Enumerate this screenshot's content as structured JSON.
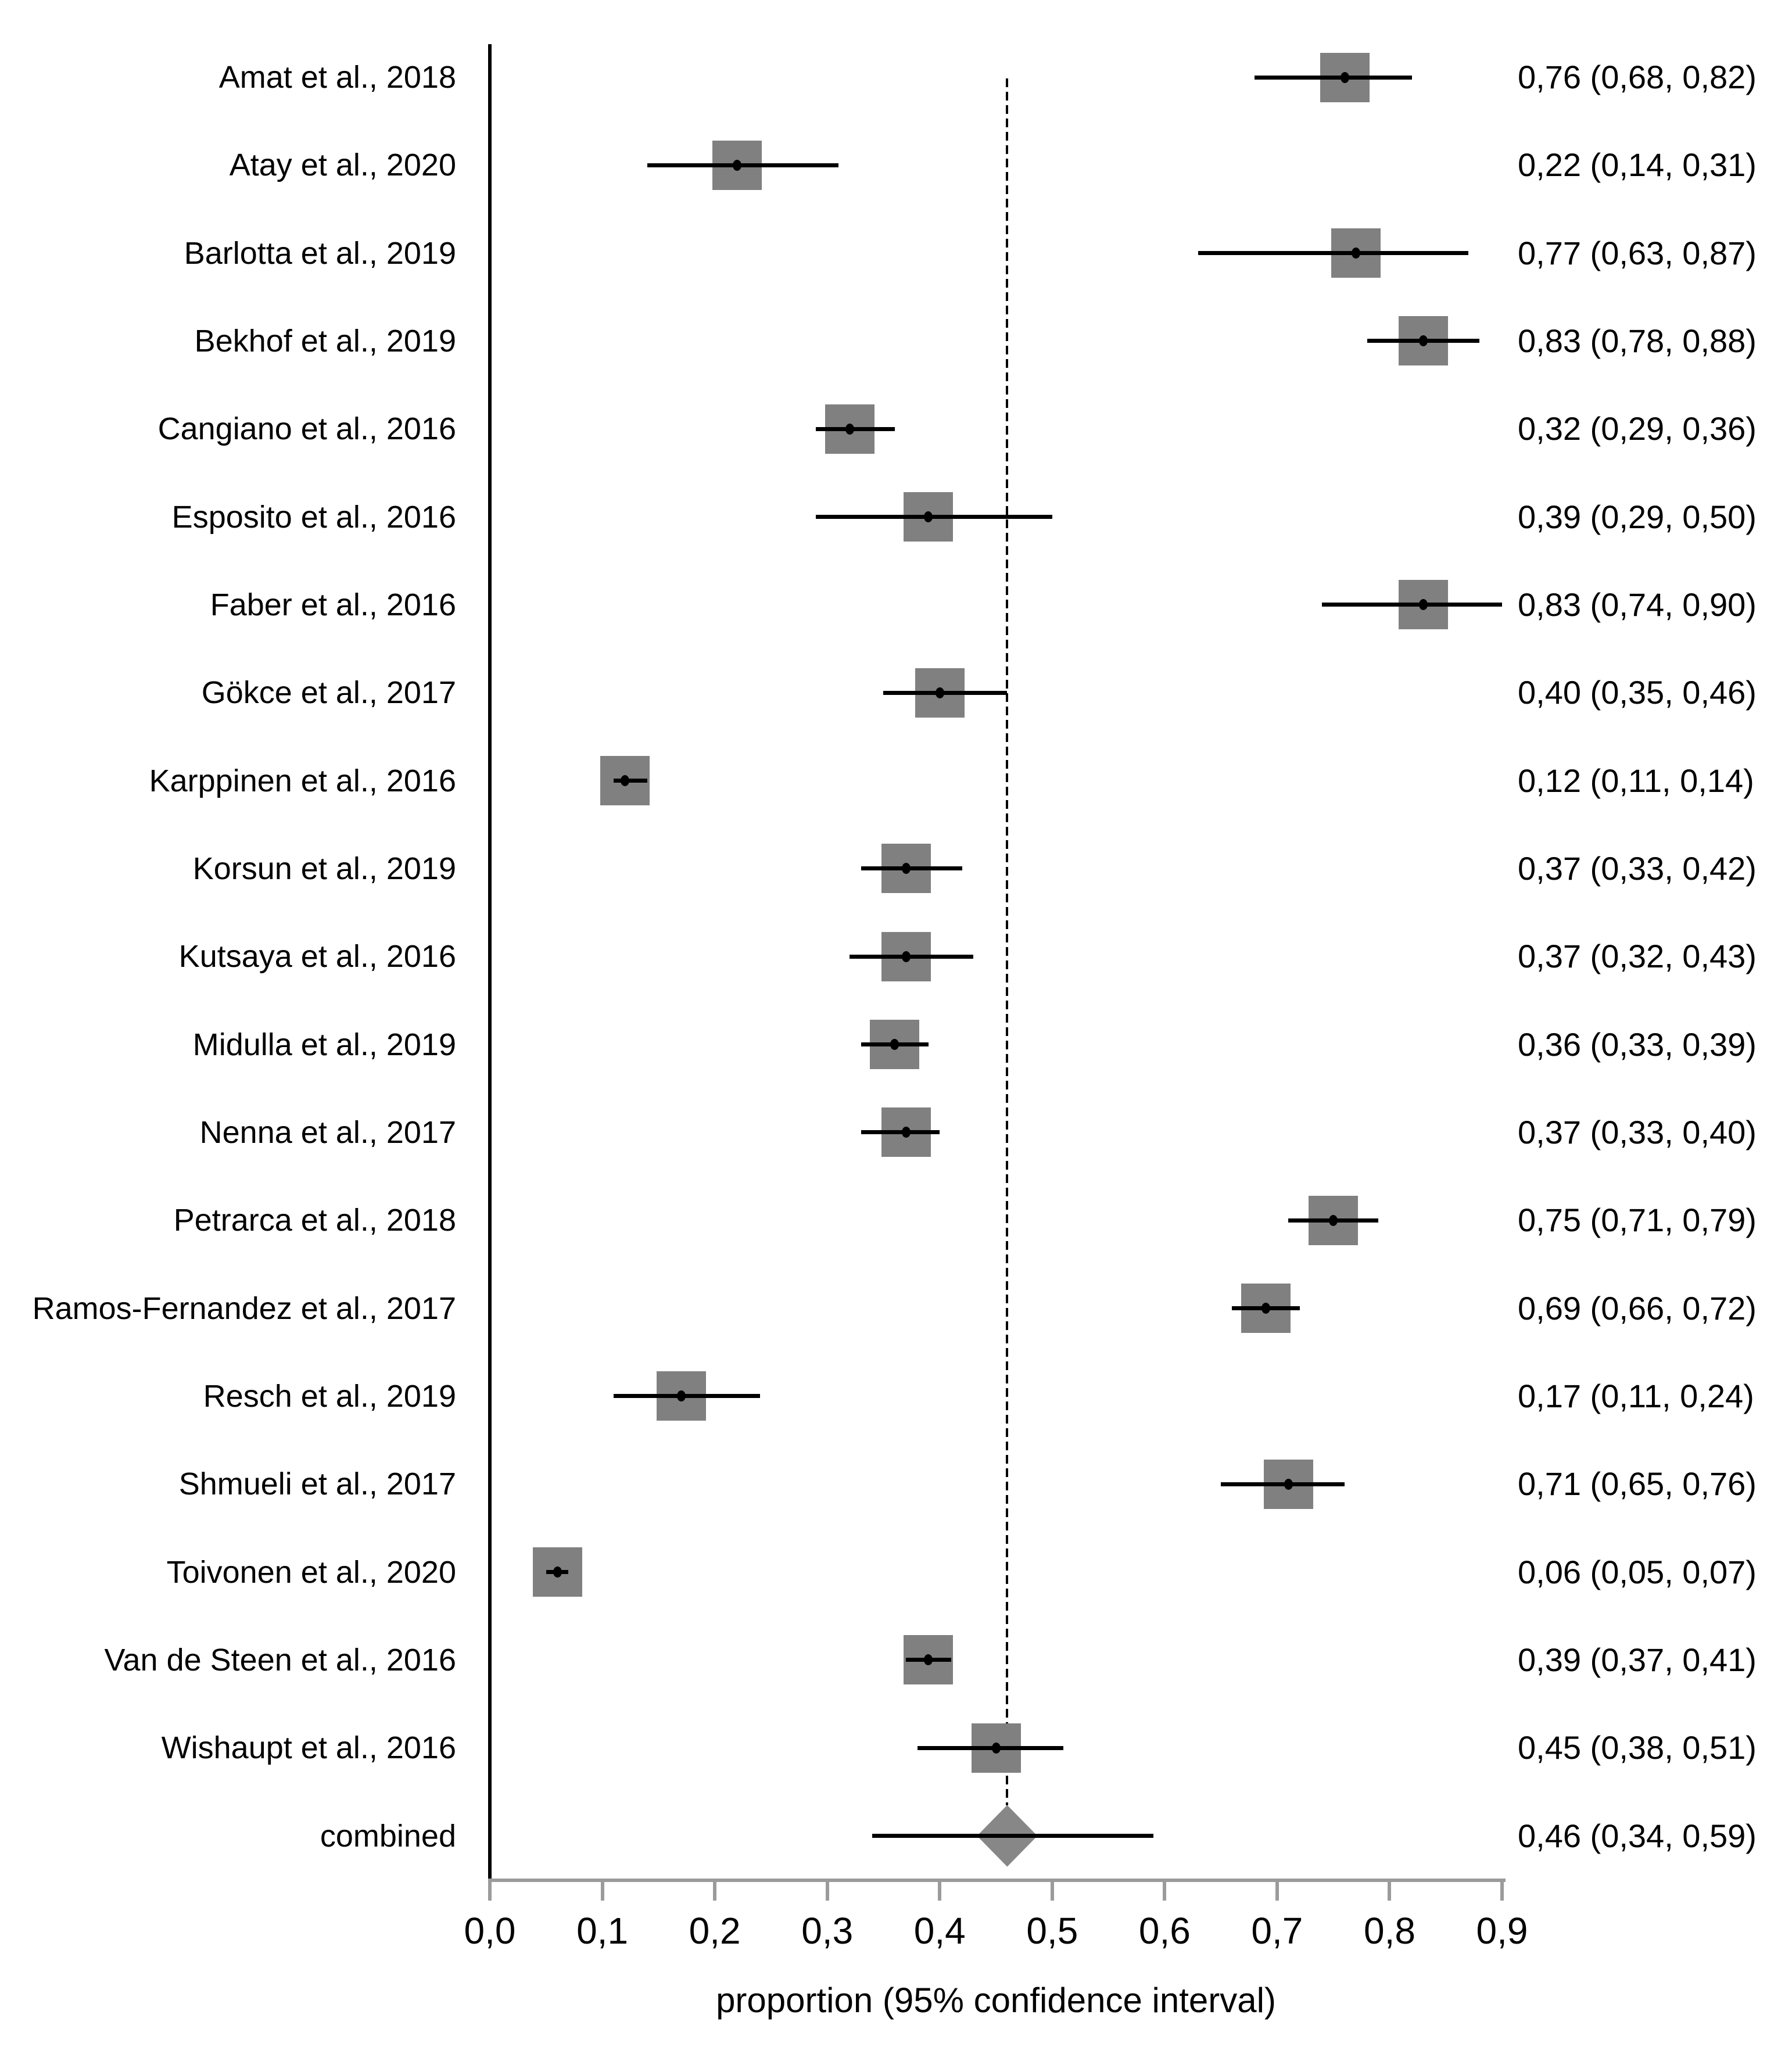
{
  "figure": {
    "xlabel": "proportion (95% confidence interval)"
  },
  "chart_data": {
    "type": "forest",
    "title": "",
    "xlabel": "proportion (95% confidence interval)",
    "xlim": [
      0.0,
      0.9
    ],
    "x_ticks": [
      0.0,
      0.1,
      0.2,
      0.3,
      0.4,
      0.5,
      0.6,
      0.7,
      0.8,
      0.9
    ],
    "x_tick_labels": [
      "0,0",
      "0,1",
      "0,2",
      "0,3",
      "0,4",
      "0,5",
      "0,6",
      "0,7",
      "0,8",
      "0,9"
    ],
    "reference_line": 0.46,
    "legend_position": "none",
    "grid": false,
    "colors": {
      "marker_gray": "#808080",
      "diamond_gray": "#878787",
      "axis_gray": "#9b9b9b",
      "ci_line": "#000000",
      "text": "#000000"
    },
    "studies": [
      {
        "label": "Amat et al., 2018",
        "estimate": 0.76,
        "ci_low": 0.68,
        "ci_high": 0.82,
        "value_text": "0,76 (0,68, 0,82)",
        "marker": "square"
      },
      {
        "label": "Atay et al., 2020",
        "estimate": 0.22,
        "ci_low": 0.14,
        "ci_high": 0.31,
        "value_text": "0,22 (0,14, 0,31)",
        "marker": "square"
      },
      {
        "label": "Barlotta et al., 2019",
        "estimate": 0.77,
        "ci_low": 0.63,
        "ci_high": 0.87,
        "value_text": "0,77 (0,63, 0,87)",
        "marker": "square"
      },
      {
        "label": "Bekhof et al., 2019",
        "estimate": 0.83,
        "ci_low": 0.78,
        "ci_high": 0.88,
        "value_text": "0,83 (0,78, 0,88)",
        "marker": "square"
      },
      {
        "label": "Cangiano et al., 2016",
        "estimate": 0.32,
        "ci_low": 0.29,
        "ci_high": 0.36,
        "value_text": "0,32 (0,29, 0,36)",
        "marker": "square"
      },
      {
        "label": "Esposito et al., 2016",
        "estimate": 0.39,
        "ci_low": 0.29,
        "ci_high": 0.5,
        "value_text": "0,39 (0,29, 0,50)",
        "marker": "square"
      },
      {
        "label": "Faber et al., 2016",
        "estimate": 0.83,
        "ci_low": 0.74,
        "ci_high": 0.9,
        "value_text": "0,83 (0,74, 0,90)",
        "marker": "square"
      },
      {
        "label": "Gökce et al., 2017",
        "estimate": 0.4,
        "ci_low": 0.35,
        "ci_high": 0.46,
        "value_text": "0,40 (0,35, 0,46)",
        "marker": "square"
      },
      {
        "label": "Karppinen et al., 2016",
        "estimate": 0.12,
        "ci_low": 0.11,
        "ci_high": 0.14,
        "value_text": "0,12 (0,11, 0,14)",
        "marker": "square"
      },
      {
        "label": "Korsun et al., 2019",
        "estimate": 0.37,
        "ci_low": 0.33,
        "ci_high": 0.42,
        "value_text": "0,37 (0,33, 0,42)",
        "marker": "square"
      },
      {
        "label": "Kutsaya et al., 2016",
        "estimate": 0.37,
        "ci_low": 0.32,
        "ci_high": 0.43,
        "value_text": "0,37 (0,32, 0,43)",
        "marker": "square"
      },
      {
        "label": "Midulla et al., 2019",
        "estimate": 0.36,
        "ci_low": 0.33,
        "ci_high": 0.39,
        "value_text": "0,36 (0,33, 0,39)",
        "marker": "square"
      },
      {
        "label": "Nenna et al., 2017",
        "estimate": 0.37,
        "ci_low": 0.33,
        "ci_high": 0.4,
        "value_text": "0,37 (0,33, 0,40)",
        "marker": "square"
      },
      {
        "label": "Petrarca et al., 2018",
        "estimate": 0.75,
        "ci_low": 0.71,
        "ci_high": 0.79,
        "value_text": "0,75 (0,71, 0,79)",
        "marker": "square"
      },
      {
        "label": "Ramos-Fernandez et al., 2017",
        "estimate": 0.69,
        "ci_low": 0.66,
        "ci_high": 0.72,
        "value_text": "0,69 (0,66, 0,72)",
        "marker": "square"
      },
      {
        "label": "Resch et al., 2019",
        "estimate": 0.17,
        "ci_low": 0.11,
        "ci_high": 0.24,
        "value_text": "0,17 (0,11, 0,24)",
        "marker": "square"
      },
      {
        "label": "Shmueli et al., 2017",
        "estimate": 0.71,
        "ci_low": 0.65,
        "ci_high": 0.76,
        "value_text": "0,71 (0,65, 0,76)",
        "marker": "square"
      },
      {
        "label": "Toivonen et al., 2020",
        "estimate": 0.06,
        "ci_low": 0.05,
        "ci_high": 0.07,
        "value_text": "0,06 (0,05, 0,07)",
        "marker": "square"
      },
      {
        "label": "Van de Steen et al., 2016",
        "estimate": 0.39,
        "ci_low": 0.37,
        "ci_high": 0.41,
        "value_text": "0,39 (0,37, 0,41)",
        "marker": "square"
      },
      {
        "label": "Wishaupt et al., 2016",
        "estimate": 0.45,
        "ci_low": 0.38,
        "ci_high": 0.51,
        "value_text": "0,45 (0,38, 0,51)",
        "marker": "square"
      },
      {
        "label": "combined",
        "estimate": 0.46,
        "ci_low": 0.34,
        "ci_high": 0.59,
        "value_text": "0,46 (0,34, 0,59)",
        "marker": "diamond"
      }
    ]
  }
}
